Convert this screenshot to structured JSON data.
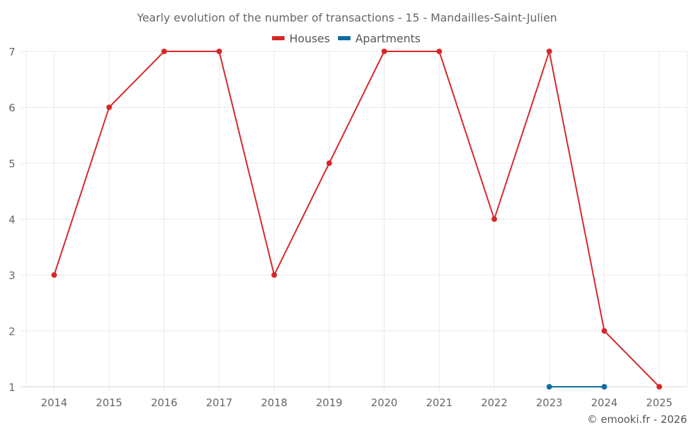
{
  "chart_data": {
    "type": "line",
    "title": "Yearly evolution of the number of transactions - 15 - Mandailles-Saint-Julien",
    "xlabel": "",
    "ylabel": "",
    "categories": [
      "2014",
      "2015",
      "2016",
      "2017",
      "2018",
      "2019",
      "2020",
      "2021",
      "2022",
      "2023",
      "2024",
      "2025"
    ],
    "ylim": [
      1,
      7
    ],
    "yticks": [
      1,
      2,
      3,
      4,
      5,
      6,
      7
    ],
    "grid": true,
    "legend_position": "top",
    "series": [
      {
        "name": "Houses",
        "color": "#d62728",
        "values": [
          3,
          6,
          7,
          7,
          3,
          5,
          7,
          7,
          4,
          7,
          2,
          1
        ]
      },
      {
        "name": "Apartments",
        "color": "#0e6ea3",
        "values": [
          null,
          null,
          null,
          null,
          null,
          null,
          null,
          null,
          null,
          1,
          1,
          null
        ]
      }
    ],
    "credit": "© emooki.fr - 2026"
  }
}
